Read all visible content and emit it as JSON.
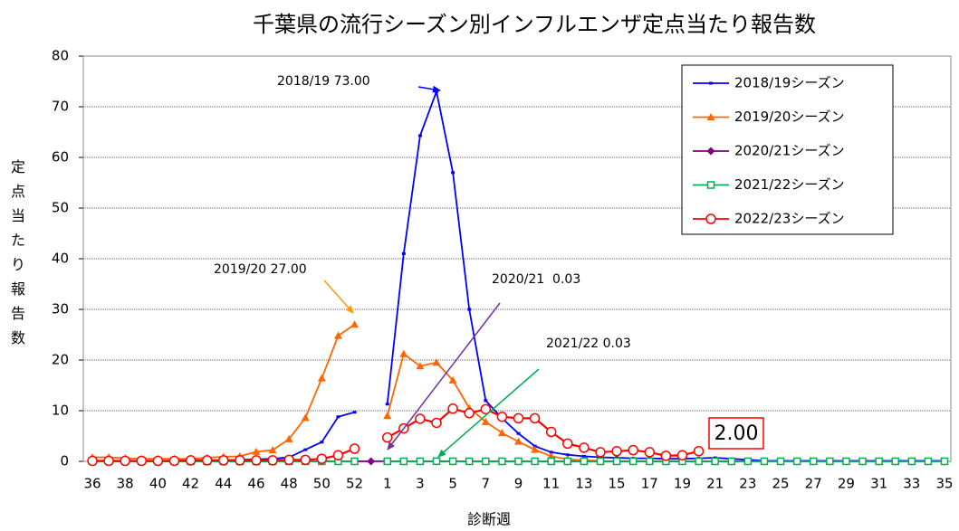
{
  "chart_data": {
    "type": "line",
    "title": "千葉県の流行シーズン別インフルエンザ定点当たり報告数",
    "x_label": "診断週",
    "y_label": "定点当たり報告数",
    "categories": [
      36,
      null,
      38,
      null,
      40,
      null,
      42,
      null,
      44,
      null,
      46,
      null,
      48,
      null,
      50,
      null,
      52,
      null,
      1,
      null,
      3,
      null,
      5,
      null,
      7,
      null,
      9,
      null,
      11,
      null,
      13,
      null,
      15,
      null,
      17,
      null,
      19,
      null,
      21,
      null,
      23,
      null,
      25,
      null,
      27,
      null,
      29,
      null,
      31,
      null,
      33,
      null,
      35
    ],
    "ylim": [
      0,
      80
    ],
    "yticks": [
      0,
      10,
      20,
      30,
      40,
      50,
      60,
      70,
      80
    ],
    "grid": true,
    "legend": "top-right",
    "series": [
      {
        "name": "2018/19シーズン",
        "color": "#0000ff",
        "marker": "dash",
        "values": [
          0.1,
          0.1,
          0.1,
          0.1,
          0.1,
          0.1,
          0.2,
          0.2,
          0.2,
          0.3,
          0.4,
          0.5,
          0.8,
          2.3,
          3.8,
          8.8,
          9.7,
          null,
          11.3,
          41,
          64.3,
          73.0,
          57,
          30,
          12,
          8.5,
          5.5,
          3,
          1.8,
          1.3,
          1,
          0.8,
          0.7,
          0.6,
          0.6,
          0.5,
          0.5,
          0.6,
          0.7,
          0.5,
          0.3,
          0.1,
          0.1,
          0.1,
          0.1,
          0.1,
          0.1,
          0.1,
          0.1,
          0.1,
          0.1,
          0.1,
          0.1
        ]
      },
      {
        "name": "2019/20シーズン",
        "color": "#ff6600",
        "marker": "triangle",
        "values": [
          0.8,
          0.8,
          0.6,
          0.5,
          0.5,
          0.5,
          0.5,
          0.7,
          0.9,
          1.0,
          1.9,
          2.2,
          4.4,
          8.6,
          16.4,
          24.8,
          27.0,
          null,
          9.0,
          21.2,
          18.8,
          19.5,
          16,
          10.5,
          7.8,
          5.6,
          3.9,
          2.3,
          1.0,
          0.4,
          0.2,
          0.1,
          null,
          null,
          null,
          null,
          null,
          null,
          null,
          null,
          null,
          null,
          null,
          null,
          null,
          null,
          null,
          null,
          null,
          null,
          null,
          null,
          null
        ]
      },
      {
        "name": "2020/21シーズン",
        "color": "#800080",
        "marker": "diamond",
        "values": [
          0.01,
          0.01,
          0.01,
          0.01,
          0.01,
          0.01,
          0.01,
          0.01,
          0.01,
          0.01,
          0.01,
          0.01,
          0.01,
          0.01,
          0.01,
          0.01,
          0.01,
          0.01,
          0.03,
          0.01,
          0.01,
          0.01,
          0.01,
          0.01,
          0.01,
          0.01,
          0.01,
          0.01,
          0.01,
          0.01,
          0.01,
          0.01,
          0.01,
          0.01,
          0.01,
          0.01,
          0.01,
          0.01,
          0.01,
          0.01,
          0.01,
          0.01,
          0.01,
          0.01,
          0.01,
          0.01,
          0.01,
          0.01,
          0.01,
          0.01,
          0.01,
          0.01,
          0.01
        ]
      },
      {
        "name": "2021/22シーズン",
        "color": "#00b050",
        "marker": "square",
        "values": [
          0.01,
          0.01,
          0.01,
          0.01,
          0.01,
          0.01,
          0.01,
          0.01,
          0.01,
          0.01,
          0.01,
          0.01,
          0.01,
          0.01,
          0.01,
          0.01,
          0.01,
          null,
          0.01,
          0.01,
          0.02,
          0.03,
          0.02,
          0.01,
          0.01,
          0.01,
          0.01,
          0.01,
          0.01,
          0.01,
          0.01,
          0.01,
          0.01,
          0.01,
          0.01,
          0.01,
          0.01,
          0.01,
          0.01,
          0.01,
          0.01,
          0.01,
          0.01,
          0.01,
          0.01,
          0.01,
          0.01,
          0.01,
          0.01,
          0.01,
          0.01,
          0.01,
          0.01
        ]
      },
      {
        "name": "2022/23シーズン",
        "color": "#ff0000",
        "marker": "circle",
        "values": [
          0.1,
          0.1,
          0.1,
          0.1,
          0.1,
          0.1,
          0.2,
          0.2,
          0.2,
          0.2,
          0.2,
          0.2,
          0.3,
          0.3,
          0.5,
          1.2,
          2.5,
          null,
          4.7,
          6.5,
          8.4,
          7.6,
          10.4,
          9.5,
          10.3,
          8.8,
          8.5,
          8.5,
          5.8,
          3.5,
          2.7,
          1.8,
          2.0,
          2.2,
          1.8,
          1.1,
          1.2,
          2.0,
          null,
          null,
          null,
          null,
          null,
          null,
          null,
          null,
          null,
          null,
          null,
          null,
          null,
          null,
          null
        ]
      }
    ],
    "annotations": [
      {
        "text": "2018/19 73.00",
        "color": "#0000ff"
      },
      {
        "text": "2019/20 27.00",
        "color": "#ff9900"
      },
      {
        "text": "2020/21  0.03",
        "color": "#7030a0"
      },
      {
        "text": "2021/22 0.03",
        "color": "#00b050"
      },
      {
        "text": "2.00",
        "color": "#ff0000"
      }
    ]
  }
}
